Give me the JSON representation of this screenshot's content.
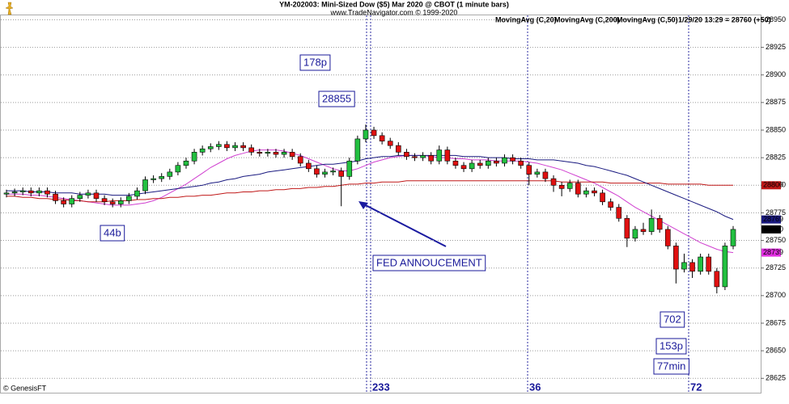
{
  "chart_data": {
    "type": "candlestick",
    "title": "YM-202003:  Mini-Sized Dow ($5) Mar 2020 @ CBOT  (1 minute bars)",
    "subtitle": "www.TradeNavigator.com © 1999-2020",
    "footer": "© GenesisFT",
    "last_price_label": "1/29/20 13:29 = 28760 (+50)",
    "up_color": "#22c040",
    "down_color": "#e01010",
    "open": [
      28792,
      28793,
      28794,
      28795,
      28793,
      28795,
      28792,
      28786,
      28783,
      28788,
      28791,
      28793,
      28788,
      28785,
      28783,
      28786,
      28790,
      28795,
      28805,
      28806,
      28808,
      28812,
      28818,
      28822,
      28830,
      28833,
      28835,
      28837,
      28834,
      28836,
      28834,
      28830,
      28829,
      28830,
      28828,
      28830,
      28826,
      28820,
      28815,
      28810,
      28812,
      28813,
      28808,
      28822,
      28842,
      28850,
      28845,
      28840,
      28836,
      28830,
      28826,
      28825,
      28827,
      28822,
      28832,
      28822,
      28818,
      28815,
      28820,
      28818,
      28822,
      28820,
      28825,
      28822,
      28818,
      28810,
      28812,
      28806,
      28800,
      28797,
      28802,
      28792,
      28795,
      28793,
      28785,
      28780,
      28770,
      28752,
      28760,
      28758,
      28770,
      28760,
      28745,
      28724,
      28730,
      28722,
      28735,
      28722,
      28708,
      28745
    ],
    "high": [
      28796,
      28797,
      28798,
      28798,
      28798,
      28798,
      28795,
      28789,
      28791,
      28794,
      28796,
      28796,
      28791,
      28788,
      28789,
      28793,
      28798,
      28808,
      28809,
      28811,
      28815,
      28821,
      28825,
      28833,
      28836,
      28838,
      28840,
      28840,
      28839,
      28839,
      28837,
      28833,
      28833,
      28833,
      28833,
      28833,
      28829,
      28823,
      28818,
      28815,
      28816,
      28816,
      28825,
      28845,
      28855,
      28853,
      28848,
      28843,
      28839,
      28833,
      28829,
      28830,
      28830,
      28836,
      28835,
      28825,
      28821,
      28823,
      28823,
      28825,
      28825,
      28828,
      28828,
      28825,
      28821,
      28815,
      28815,
      28809,
      28803,
      28805,
      28805,
      28798,
      28798,
      28796,
      28788,
      28783,
      28773,
      28763,
      28766,
      28778,
      28773,
      28763,
      28748,
      28738,
      28733,
      28738,
      28738,
      28725,
      28748,
      28763
    ],
    "low": [
      28789,
      28790,
      28791,
      28790,
      28790,
      28789,
      28783,
      28780,
      28780,
      28785,
      28788,
      28785,
      28782,
      28780,
      28780,
      28783,
      28787,
      28792,
      28802,
      28803,
      28805,
      28809,
      28815,
      28819,
      28827,
      28830,
      28832,
      28831,
      28831,
      28831,
      28827,
      28826,
      28826,
      28825,
      28825,
      28823,
      28817,
      28812,
      28807,
      28807,
      28809,
      28781,
      28805,
      28819,
      28839,
      28842,
      28837,
      28833,
      28827,
      28823,
      28822,
      28822,
      28819,
      28819,
      28819,
      28815,
      28812,
      28812,
      28815,
      28815,
      28817,
      28817,
      28819,
      28815,
      28800,
      28807,
      28803,
      28794,
      28790,
      28794,
      28789,
      28789,
      28790,
      28782,
      28777,
      28767,
      28744,
      28749,
      28755,
      28755,
      28757,
      28742,
      28711,
      28721,
      28716,
      28719,
      28719,
      28702,
      28705,
      28742
    ],
    "close": [
      28793,
      28794,
      28795,
      28793,
      28795,
      28792,
      28786,
      28783,
      28788,
      28791,
      28793,
      28788,
      28785,
      28783,
      28786,
      28790,
      28795,
      28805,
      28806,
      28808,
      28812,
      28818,
      28822,
      28830,
      28833,
      28835,
      28837,
      28834,
      28836,
      28834,
      28830,
      28829,
      28830,
      28828,
      28830,
      28826,
      28820,
      28815,
      28810,
      28812,
      28813,
      28808,
      28822,
      28842,
      28850,
      28845,
      28840,
      28836,
      28830,
      28826,
      28825,
      28827,
      28822,
      28832,
      28822,
      28818,
      28815,
      28820,
      28818,
      28822,
      28820,
      28825,
      28822,
      28818,
      28810,
      28812,
      28806,
      28800,
      28797,
      28802,
      28792,
      28795,
      28793,
      28785,
      28780,
      28770,
      28752,
      28760,
      28758,
      28770,
      28760,
      28745,
      28724,
      28730,
      28722,
      28735,
      28722,
      28708,
      28745,
      28760
    ],
    "series": [
      {
        "name": "MovingAvg (C,20)",
        "color": "#d040d0",
        "values": [
          28792,
          28792,
          28792,
          28791,
          28791,
          28790,
          28789,
          28788,
          28787,
          28786,
          28785,
          28784,
          28783,
          28782,
          28782,
          28782,
          28783,
          28784,
          28786,
          28789,
          28793,
          28797,
          28801,
          28806,
          28811,
          28816,
          28820,
          28824,
          28827,
          28829,
          28831,
          28832,
          28832,
          28832,
          28831,
          28829,
          28827,
          28824,
          28821,
          28818,
          28815,
          28813,
          28813,
          28815,
          28818,
          28821,
          28823,
          28825,
          28826,
          28827,
          28827,
          28827,
          28826,
          28825,
          28825,
          28824,
          28824,
          28823,
          28823,
          28823,
          28822,
          28822,
          28822,
          28822,
          28821,
          28820,
          28818,
          28816,
          28814,
          28811,
          28808,
          28805,
          28802,
          28798,
          28794,
          28790,
          28785,
          28780,
          28776,
          28772,
          28768,
          28764,
          28760,
          28756,
          28752,
          28748,
          28745,
          28742,
          28740,
          28739
        ]
      },
      {
        "name": "MovingAvg (C,200)",
        "color": "#c01818",
        "values": [
          28790,
          28790,
          28789,
          28789,
          28788,
          28788,
          28787,
          28787,
          28786,
          28786,
          28785,
          28785,
          28785,
          28786,
          28786,
          28786,
          28787,
          28787,
          28788,
          28788,
          28789,
          28789,
          28790,
          28790,
          28791,
          28791,
          28792,
          28793,
          28793,
          28794,
          28794,
          28795,
          28795,
          28796,
          28796,
          28797,
          28797,
          28798,
          28798,
          28799,
          28799,
          28800,
          28801,
          28801,
          28802,
          28802,
          28803,
          28803,
          28803,
          28804,
          28804,
          28804,
          28804,
          28804,
          28804,
          28804,
          28804,
          28804,
          28804,
          28804,
          28804,
          28804,
          28804,
          28804,
          28804,
          28804,
          28804,
          28804,
          28803,
          28803,
          28803,
          28803,
          28803,
          28803,
          28802,
          28802,
          28802,
          28802,
          28802,
          28802,
          28802,
          28801,
          28801,
          28801,
          28801,
          28801,
          28800,
          28800,
          28800,
          28800
        ]
      },
      {
        "name": "MovingAvg (C,50)",
        "color": "#1a1a80",
        "values": [
          28795,
          28795,
          28795,
          28794,
          28794,
          28794,
          28793,
          28793,
          28793,
          28792,
          28792,
          28792,
          28792,
          28791,
          28791,
          28791,
          28792,
          28793,
          28794,
          28795,
          28796,
          28797,
          28798,
          28799,
          28800,
          28802,
          28803,
          28805,
          28806,
          28808,
          28809,
          28810,
          28812,
          28813,
          28814,
          28815,
          28816,
          28817,
          28818,
          28819,
          28819,
          28820,
          28821,
          28822,
          28824,
          28825,
          28826,
          28826,
          28827,
          28827,
          28827,
          28827,
          28827,
          28827,
          28827,
          28827,
          28826,
          28826,
          28826,
          28825,
          28825,
          28825,
          28824,
          28824,
          28824,
          28823,
          28823,
          28823,
          28822,
          28821,
          28820,
          28818,
          28817,
          28815,
          28813,
          28811,
          28809,
          28806,
          28803,
          28800,
          28797,
          28794,
          28791,
          28788,
          28785,
          28782,
          28779,
          28776,
          28772,
          28769
        ]
      }
    ],
    "ylim": [
      28612,
      28954
    ],
    "yticks": [
      28625,
      28650,
      28675,
      28700,
      28725,
      28750,
      28775,
      28800,
      28825,
      28850,
      28875,
      28900,
      28925,
      28950
    ],
    "grid": true,
    "price_tags": [
      {
        "value": 28800,
        "color": "#c01818"
      },
      {
        "value": 28769,
        "color": "#1a1a80"
      },
      {
        "value": 28760,
        "color": "#000000"
      },
      {
        "value": 28739,
        "color": "#e030e0"
      }
    ],
    "annotations": [
      "178p",
      "28855",
      "44b",
      "FED ANNOUCEMENT",
      "702",
      "153p",
      "77min"
    ],
    "markers": [
      "233",
      "36",
      "72"
    ]
  }
}
